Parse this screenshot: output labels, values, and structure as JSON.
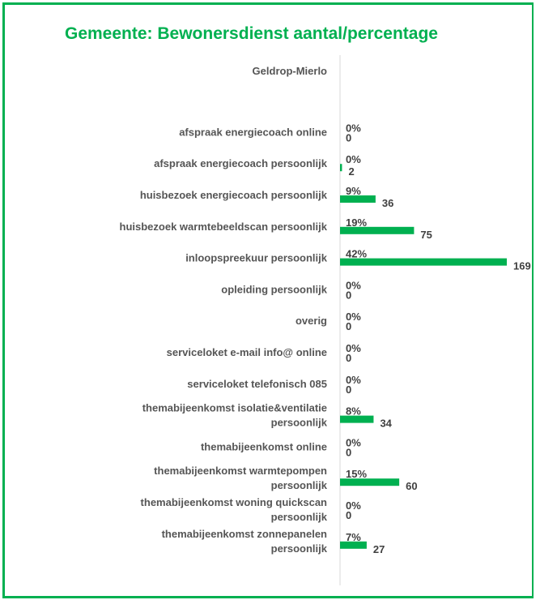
{
  "title": "Gemeente: Bewonersdienst aantal/percentage",
  "colors": {
    "accent": "#00b050",
    "bar": "#00b050",
    "text": "#555555",
    "label": "#404040",
    "axis": "#d9d9d9"
  },
  "chart_data": {
    "type": "bar",
    "orientation": "horizontal",
    "title": "Gemeente: Bewonersdienst aantal/percentage",
    "series_name": "Geldrop-Mierlo",
    "categories": [
      [
        "afspraak energiecoach online"
      ],
      [
        "afspraak energiecoach persoonlijk"
      ],
      [
        "huisbezoek energiecoach persoonlijk"
      ],
      [
        "huisbezoek warmtebeeldscan persoonlijk"
      ],
      [
        "inloopspreekuur persoonlijk"
      ],
      [
        "opleiding persoonlijk"
      ],
      [
        "overig"
      ],
      [
        "serviceloket e-mail info@ online"
      ],
      [
        "serviceloket telefonisch 085"
      ],
      [
        "themabijeenkomst isolatie&ventilatie",
        "persoonlijk"
      ],
      [
        "themabijeenkomst online"
      ],
      [
        "themabijeenkomst warmtepompen",
        "persoonlijk"
      ],
      [
        "themabijeenkomst woning quickscan",
        "persoonlijk"
      ],
      [
        "themabijeenkomst zonnepanelen",
        "persoonlijk"
      ]
    ],
    "values": [
      0,
      2,
      36,
      75,
      169,
      0,
      0,
      0,
      0,
      34,
      0,
      60,
      0,
      27
    ],
    "percentages": [
      "0%",
      "0%",
      "9%",
      "19%",
      "42%",
      "0%",
      "0%",
      "0%",
      "0%",
      "8%",
      "0%",
      "15%",
      "0%",
      "7%"
    ],
    "xlim": [
      0,
      169
    ],
    "grid": false,
    "legend": "none"
  }
}
